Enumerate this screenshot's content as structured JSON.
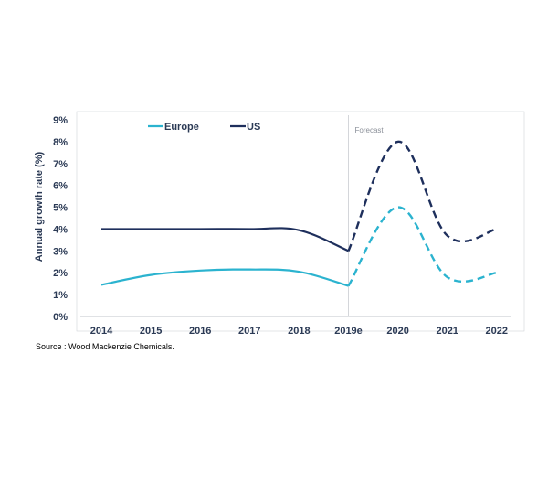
{
  "source": "Source : Wood Mackenzie Chemicals.",
  "chart_data": {
    "type": "line",
    "ylabel": "Annual growth rate (%)",
    "xlabel": "",
    "categories": [
      "2014",
      "2015",
      "2016",
      "2017",
      "2018",
      "2019e",
      "2020",
      "2021",
      "2022"
    ],
    "ylim": [
      0,
      9
    ],
    "yticks": [
      "0%",
      "1%",
      "2%",
      "3%",
      "4%",
      "5%",
      "6%",
      "7%",
      "8%",
      "9%"
    ],
    "forecast_label": "Forecast",
    "forecast_start": "2019e",
    "grid": false,
    "legend_position": "top",
    "series": [
      {
        "name": "Europe",
        "color": "#2bb3cf",
        "points": [
          [
            2014,
            1.45
          ],
          [
            2015,
            1.9
          ],
          [
            2016,
            2.1
          ],
          [
            2017,
            2.15
          ],
          [
            2018,
            2.05
          ],
          [
            2019,
            1.4
          ],
          [
            2020,
            5.0
          ],
          [
            2021,
            1.8
          ],
          [
            2022,
            2.0
          ]
        ]
      },
      {
        "name": "US",
        "color": "#1e2f5c",
        "points": [
          [
            2014,
            4.0
          ],
          [
            2015,
            4.0
          ],
          [
            2016,
            4.0
          ],
          [
            2017,
            4.0
          ],
          [
            2018,
            3.95
          ],
          [
            2019,
            3.0
          ],
          [
            2020,
            8.0
          ],
          [
            2021,
            3.7
          ],
          [
            2022,
            4.0
          ]
        ]
      }
    ]
  }
}
